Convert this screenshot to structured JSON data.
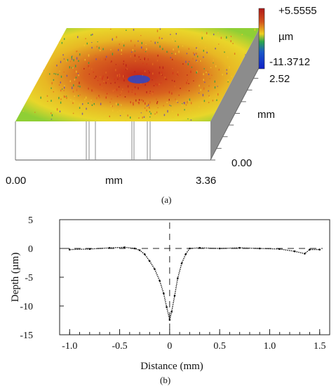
{
  "colors": {
    "scale_top": "#b01818",
    "scale_mid": "#f0d020",
    "scale_low_green": "#2aa84a",
    "scale_bottom": "#1020c8",
    "side_face": "#8c8c8c",
    "trace": "#111111"
  },
  "panel_a": {
    "caption": "(a)",
    "color_scale": {
      "max_label": "+5.5555",
      "unit_label": "µm",
      "min_label": "-11.3712"
    },
    "x_axis": {
      "ticks": [
        "0.00",
        "3.36"
      ],
      "unit": "mm"
    },
    "y_axis": {
      "ticks": [
        "2.52",
        "0.00"
      ],
      "unit": "mm"
    }
  },
  "chart_data": {
    "type": "line",
    "caption": "(b)",
    "xlabel": "Distance (mm)",
    "ylabel": "Depth (µm)",
    "xlim": [
      -1.1,
      1.6
    ],
    "ylim": [
      -15,
      5
    ],
    "x_ticks": [
      "-1.0",
      "-0.5",
      "0",
      "0.5",
      "1.0",
      "1.5"
    ],
    "y_ticks": [
      "5",
      "0",
      "-5",
      "-10",
      "-15"
    ],
    "reference_lines": {
      "horizontal_y": 0,
      "vertical_x": 0,
      "style": "dashed"
    },
    "series": [
      {
        "x": [
          -1.0,
          -0.8,
          -0.6,
          -0.45,
          -0.35,
          -0.3,
          -0.25,
          -0.2,
          -0.15,
          -0.1,
          -0.06,
          -0.03,
          0.0,
          0.02,
          0.05,
          0.08,
          0.12,
          0.16,
          0.2,
          0.3,
          0.5,
          0.7,
          0.9,
          1.1,
          1.25,
          1.35,
          1.4,
          1.5
        ],
        "y": [
          -0.2,
          -0.1,
          0.1,
          0.2,
          0.0,
          -0.3,
          -1.0,
          -2.2,
          -3.6,
          -5.6,
          -7.8,
          -10.2,
          -12.4,
          -11.0,
          -8.2,
          -5.2,
          -2.6,
          -1.0,
          0.0,
          0.1,
          0.0,
          0.1,
          0.0,
          -0.1,
          -0.5,
          -0.9,
          -0.2,
          -0.2
        ]
      }
    ]
  }
}
